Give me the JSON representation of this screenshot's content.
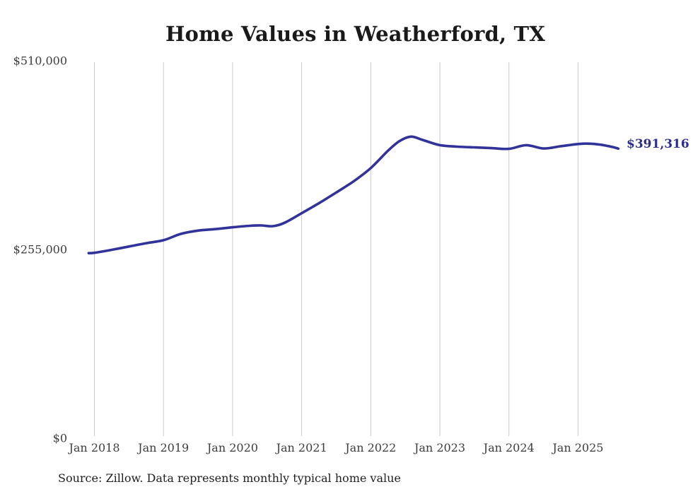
{
  "page": {
    "background": "#ffffff"
  },
  "chart_data": {
    "type": "line",
    "title": "Home Values in Weatherford, TX",
    "source_note": "Source: Zillow. Data represents monthly typical home value",
    "series_name": "Typical home value (monthly)",
    "end_label": "$391,316",
    "final_value": 391316,
    "x_range": [
      "2017-12",
      "2025-08"
    ],
    "ylim": [
      0,
      510000
    ],
    "grid": "vertical-only",
    "legend": "none",
    "y_ticks": [
      {
        "label": "$510,000",
        "value": 510000
      },
      {
        "label": "$255,000",
        "value": 255000
      },
      {
        "label": "$0",
        "value": 0
      }
    ],
    "x_ticks": [
      {
        "label": "Jan 2018",
        "date": "2018-01"
      },
      {
        "label": "Jan 2019",
        "date": "2019-01"
      },
      {
        "label": "Jan 2020",
        "date": "2020-01"
      },
      {
        "label": "Jan 2021",
        "date": "2021-01"
      },
      {
        "label": "Jan 2022",
        "date": "2022-01"
      },
      {
        "label": "Jan 2023",
        "date": "2023-01"
      },
      {
        "label": "Jan 2024",
        "date": "2024-01"
      },
      {
        "label": "Jan 2025",
        "date": "2025-01"
      }
    ],
    "points": [
      [
        "2017-12",
        250000
      ],
      [
        "2018-01",
        250500
      ],
      [
        "2018-04",
        254500
      ],
      [
        "2018-07",
        259000
      ],
      [
        "2018-10",
        263500
      ],
      [
        "2019-01",
        267500
      ],
      [
        "2019-04",
        276000
      ],
      [
        "2019-07",
        280500
      ],
      [
        "2019-10",
        282500
      ],
      [
        "2020-01",
        285000
      ],
      [
        "2020-04",
        287000
      ],
      [
        "2020-06",
        287500
      ],
      [
        "2020-08",
        286500
      ],
      [
        "2020-10",
        291000
      ],
      [
        "2021-01",
        304000
      ],
      [
        "2021-04",
        317500
      ],
      [
        "2021-07",
        332000
      ],
      [
        "2021-10",
        347000
      ],
      [
        "2022-01",
        365000
      ],
      [
        "2022-04",
        388500
      ],
      [
        "2022-06",
        401500
      ],
      [
        "2022-08",
        407500
      ],
      [
        "2022-10",
        403000
      ],
      [
        "2023-01",
        396000
      ],
      [
        "2023-04",
        394000
      ],
      [
        "2023-07",
        393000
      ],
      [
        "2023-10",
        392000
      ],
      [
        "2024-01",
        391000
      ],
      [
        "2024-04",
        396000
      ],
      [
        "2024-07",
        391500
      ],
      [
        "2024-10",
        394500
      ],
      [
        "2025-01",
        397500
      ],
      [
        "2025-03",
        398000
      ],
      [
        "2025-05",
        396500
      ],
      [
        "2025-07",
        393500
      ],
      [
        "2025-08",
        391316
      ]
    ],
    "colors": {
      "line": "#32329b",
      "end_label": "#2b2d8f",
      "gridline": "#cacaca",
      "axis_text": "#3d3d3d",
      "title_text": "#1a1a1a",
      "source_text": "#1f1f1f"
    }
  }
}
